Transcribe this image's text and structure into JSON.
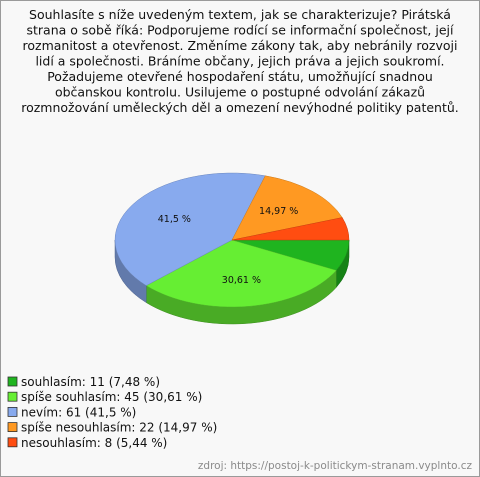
{
  "chart_data": {
    "type": "pie3d",
    "title": [
      "Souhlasíte s níže uvedeným textem, jak se charakterizuje? Pirátská",
      "strana o sobě říká: Podporujeme rodící se informační společnost, její",
      "rozmanitost a otevřenost. Změníme zákony tak, aby nebránily rozvoji",
      "lidí a společnosti. Bráníme občany, jejich práva a jejich soukromí.",
      "Požadujeme otevřené hospodaření státu, umožňující snadnou",
      "občanskou kontrolu. Usilujeme o postupné odvolání zákazů",
      "rozmnožování uměleckých děl a omezení nevýhodné politiky patentů."
    ],
    "categories": [
      "souhlasím: 11 (7,48 %)",
      "spíše souhlasím: 45 (30,61 %)",
      "nevím: 61 (41,5 %)",
      "spíše nesouhlasím: 22 (14,97 %)",
      "nesouhlasím: 8 (5,44 %)"
    ],
    "values": [
      7.48,
      30.61,
      41.5,
      14.97,
      5.44
    ],
    "value_labels": [
      null,
      "30,61 %",
      "41,5 %",
      "14,97 %",
      null
    ],
    "colors": [
      "#1fb41f",
      "#66ee33",
      "#88aaee",
      "#ff9922",
      "#ff4d11"
    ],
    "source": "zdroj: https://postoj-k-politickym-stranam.vyplnto.cz"
  }
}
